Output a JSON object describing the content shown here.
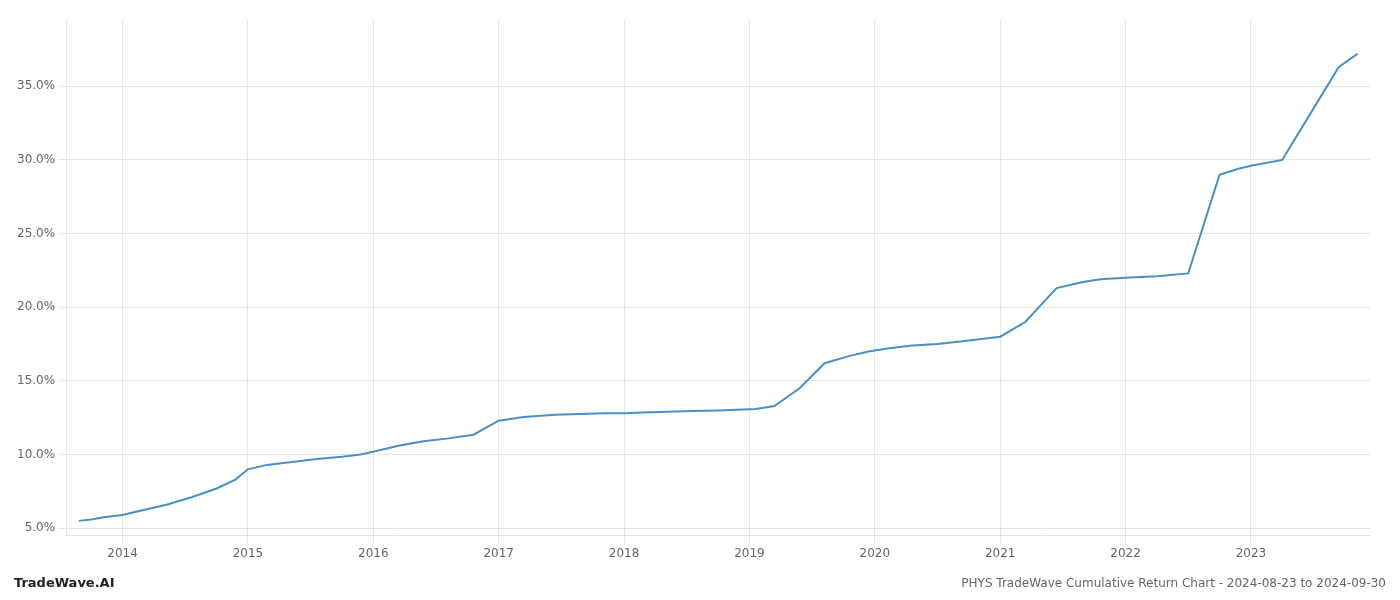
{
  "chart_data": {
    "type": "line",
    "title": "PHYS TradeWave Cumulative Return Chart - 2024-08-23 to 2024-09-30",
    "annotations": [
      "TradeWave.AI"
    ],
    "color": "#4a90c4",
    "grid": true,
    "x": [
      2013.65,
      2013.75,
      2013.85,
      2014.0,
      2014.15,
      2014.35,
      2014.55,
      2014.75,
      2014.9,
      2015.0,
      2015.15,
      2015.35,
      2015.55,
      2015.75,
      2015.9,
      2016.05,
      2016.2,
      2016.4,
      2016.6,
      2016.8,
      2017.0,
      2017.2,
      2017.45,
      2017.65,
      2017.85,
      2018.0,
      2018.15,
      2018.35,
      2018.55,
      2018.75,
      2018.9,
      2019.05,
      2019.2,
      2019.4,
      2019.6,
      2019.8,
      2019.95,
      2020.1,
      2020.3,
      2020.5,
      2020.7,
      2020.85,
      2021.0,
      2021.2,
      2021.45,
      2021.65,
      2021.8,
      2022.0,
      2022.25,
      2022.5,
      2022.75,
      2022.9,
      2023.0,
      2023.25,
      2023.5,
      2023.7,
      2023.85
    ],
    "values": [
      5.5,
      5.6,
      5.75,
      5.9,
      6.2,
      6.6,
      7.1,
      7.7,
      8.3,
      9.0,
      9.3,
      9.5,
      9.7,
      9.85,
      10.0,
      10.3,
      10.6,
      10.9,
      11.1,
      11.35,
      12.3,
      12.55,
      12.7,
      12.75,
      12.8,
      12.8,
      12.85,
      12.9,
      12.95,
      13.0,
      13.05,
      13.1,
      13.3,
      14.5,
      16.2,
      16.7,
      17.0,
      17.2,
      17.4,
      17.5,
      17.7,
      17.85,
      18.0,
      19.0,
      21.3,
      21.7,
      21.9,
      22.0,
      22.1,
      22.3,
      29.0,
      29.4,
      29.6,
      30.0,
      33.5,
      36.3,
      37.2
    ],
    "xlim": [
      2013.55,
      2023.95
    ],
    "xticks": [
      2014,
      2015,
      2016,
      2017,
      2018,
      2019,
      2020,
      2021,
      2022,
      2023
    ],
    "ylim": [
      4.5,
      39.5
    ],
    "yticks": [
      {
        "value": 5.0,
        "label": "5.0%"
      },
      {
        "value": 10.0,
        "label": "10.0%"
      },
      {
        "value": 15.0,
        "label": "15.0%"
      },
      {
        "value": 20.0,
        "label": "20.0%"
      },
      {
        "value": 25.0,
        "label": "25.0%"
      },
      {
        "value": 30.0,
        "label": "30.0%"
      },
      {
        "value": 35.0,
        "label": "35.0%"
      }
    ]
  }
}
